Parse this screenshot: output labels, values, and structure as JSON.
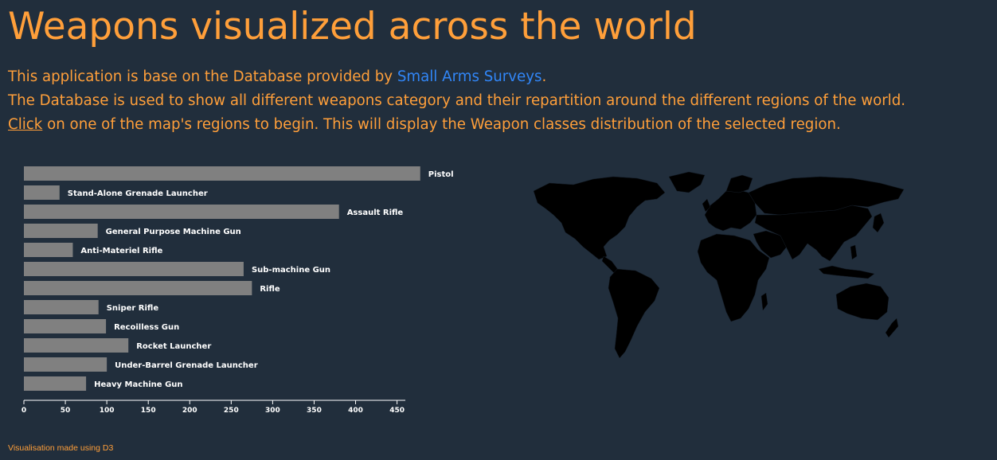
{
  "header": {
    "title": "Weapons visualized across the world"
  },
  "intro": {
    "line1_prefix": "This application is base on the Database provided by ",
    "line1_link": "Small Arms Surveys",
    "line1_suffix": ".",
    "line2": "The Database is used to show all different weapons category and their repartition around the different regions of the world.",
    "line3_link": "Click",
    "line3_rest": " on one of the map's regions to begin. This will display the Weapon classes distribution of the selected region."
  },
  "footer": {
    "text": "Visualisation made using D3"
  },
  "colors": {
    "background": "#212e3c",
    "accent": "#ff9f3a",
    "link": "#3186f7",
    "bar": "#808080",
    "map_fill": "#000000"
  },
  "chart_data": {
    "type": "bar",
    "orientation": "horizontal",
    "categories": [
      "Pistol",
      "Stand-Alone Grenade Launcher",
      "Assault Rifle",
      "General Purpose Machine Gun",
      "Anti-Materiel Rifle",
      "Sub-machine Gun",
      "Rifle",
      "Sniper Rifle",
      "Recoilless Gun",
      "Rocket Launcher",
      "Under-Barrel Grenade Launcher",
      "Heavy Machine Gun"
    ],
    "values": [
      478,
      43,
      380,
      89,
      59,
      265,
      275,
      90,
      99,
      126,
      100,
      75
    ],
    "xlim": [
      0,
      460
    ],
    "xticks": [
      0,
      50,
      100,
      150,
      200,
      250,
      300,
      350,
      400,
      450
    ],
    "title": "",
    "xlabel": "",
    "ylabel": "",
    "grid": false
  },
  "map": {
    "icon": "world-map-icon"
  }
}
